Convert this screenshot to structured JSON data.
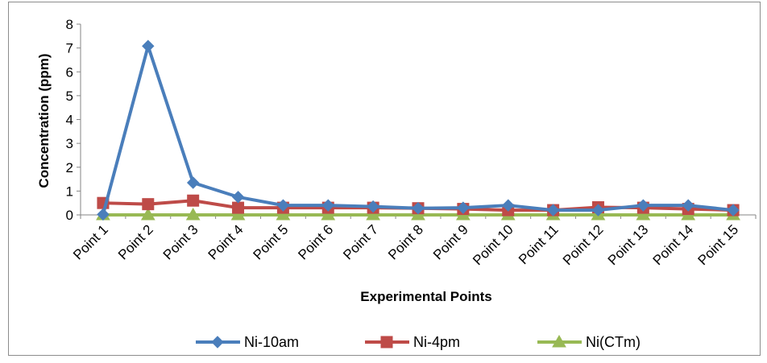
{
  "chart_data": {
    "type": "line",
    "title": "",
    "xlabel": "Experimental Points",
    "ylabel": "Concentration (ppm)",
    "ylim": [
      0,
      8
    ],
    "yticks": [
      "0",
      "1",
      "2",
      "3",
      "4",
      "5",
      "6",
      "7",
      "8"
    ],
    "grid": false,
    "legend_position": "bottom",
    "categories": [
      "Point 1",
      "Point 2",
      "Point 3",
      "Point 4",
      "Point 5",
      "Point 6",
      "Point 7",
      "Point 8",
      "Point 9",
      "Point 10",
      "Point 11",
      "Point 12",
      "Point 13",
      "Point 14",
      "Point 15"
    ],
    "series": [
      {
        "name": "Ni-10am",
        "color": "#4a7ebb",
        "marker": "diamond",
        "values": [
          0.02,
          7.08,
          1.35,
          0.75,
          0.4,
          0.4,
          0.35,
          0.28,
          0.3,
          0.4,
          0.2,
          0.2,
          0.4,
          0.4,
          0.2
        ]
      },
      {
        "name": "Ni-4pm",
        "color": "#be4b48",
        "marker": "square",
        "values": [
          0.5,
          0.45,
          0.6,
          0.3,
          0.3,
          0.3,
          0.3,
          0.28,
          0.25,
          0.2,
          0.2,
          0.32,
          0.3,
          0.25,
          0.2
        ]
      },
      {
        "name": "Ni(CTm)",
        "color": "#98b954",
        "marker": "triangle",
        "values": [
          0,
          0,
          0,
          0,
          0,
          0,
          0,
          0,
          0,
          0,
          0,
          0,
          0,
          0,
          0
        ]
      }
    ]
  }
}
